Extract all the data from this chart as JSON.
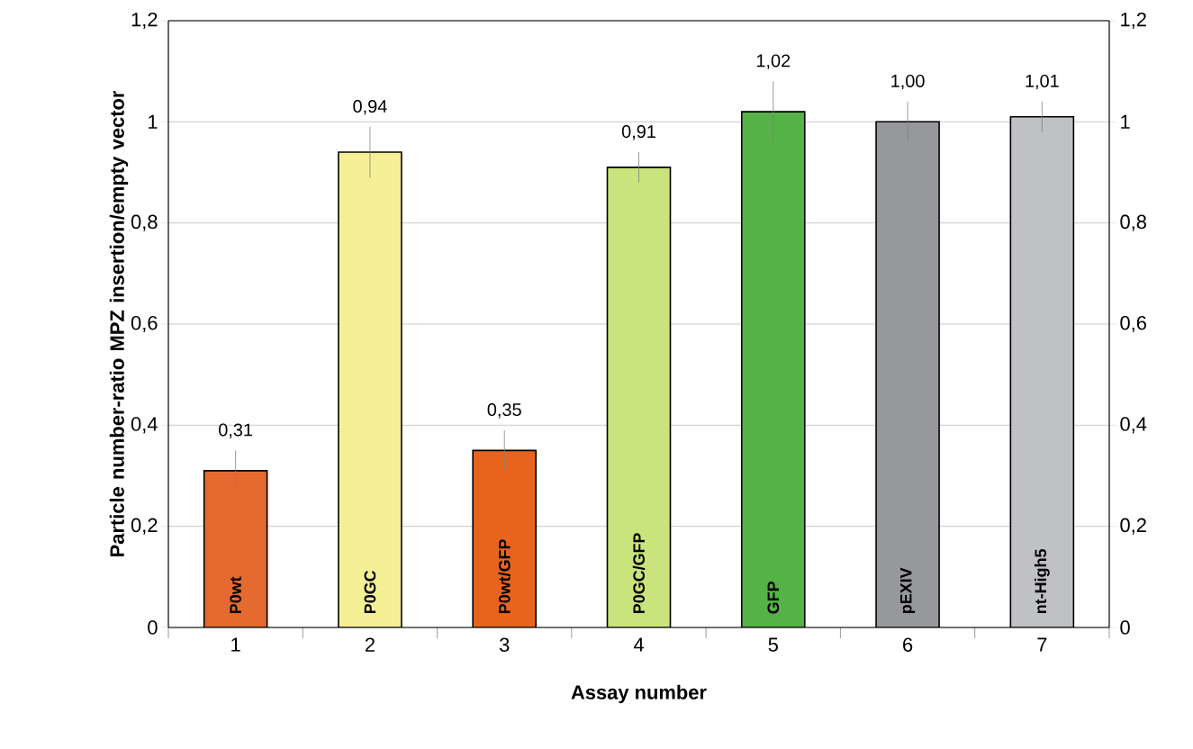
{
  "chart_data": {
    "type": "bar",
    "xlabel": "Assay number",
    "ylabel": "Particle number-ratio MPZ insertion/empty vector",
    "categories": [
      "1",
      "2",
      "3",
      "4",
      "5",
      "6",
      "7"
    ],
    "values": [
      0.31,
      0.94,
      0.35,
      0.91,
      1.02,
      1.0,
      1.01
    ],
    "errors": [
      0.04,
      0.05,
      0.04,
      0.03,
      0.06,
      0.04,
      0.03
    ],
    "value_labels": [
      "0,31",
      "0,94",
      "0,35",
      "0,91",
      "1,02",
      "1,00",
      "1,01"
    ],
    "colors": [
      "#e46a30",
      "#f5f096",
      "#e8641e",
      "#c9e47c",
      "#55b246",
      "#96989c",
      "#c0c1c4"
    ],
    "annotations": [
      "P0wt",
      "P0GC",
      "P0wt/GFP",
      "P0GC/GFP",
      "GFP",
      "pEXIV",
      "nt-High5"
    ],
    "ylim": [
      0,
      1.2
    ],
    "yticks": [
      0,
      {
        "value": 0.2,
        "label": "0,2"
      },
      {
        "value": 0.4,
        "label": "0,4"
      },
      {
        "value": 0.6,
        "label": "0,6"
      },
      {
        "value": 0.8,
        "label": "0,8"
      },
      1,
      {
        "value": 1.2,
        "label": "1,2"
      }
    ],
    "y2lim": [
      0,
      1.2
    ],
    "y2ticks": [
      0,
      {
        "value": 0.2,
        "label": "0,2"
      },
      {
        "value": 0.4,
        "label": "0,4"
      },
      {
        "value": 0.6,
        "label": "0,6"
      },
      {
        "value": 0.8,
        "label": "0,8"
      },
      1,
      {
        "value": 1.2,
        "label": "1,2"
      }
    ],
    "grid": "y"
  }
}
